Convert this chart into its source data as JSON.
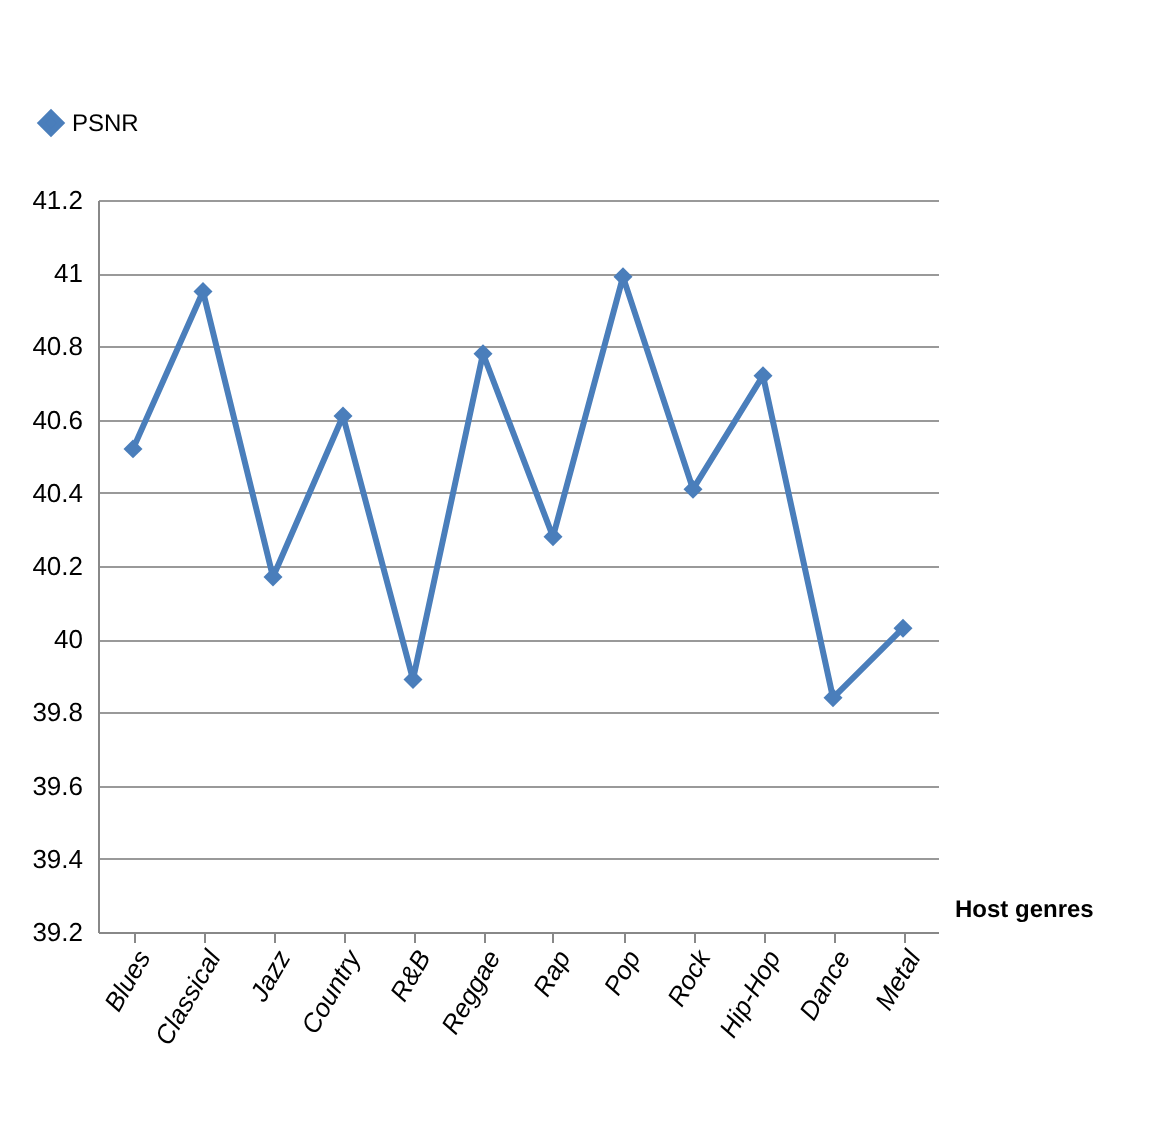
{
  "chart_data": {
    "type": "line",
    "xlabel": "Host genres",
    "categories": [
      "Blues",
      "Classical",
      "Jazz",
      "Country",
      "R&B",
      "Reggae",
      "Rap",
      "Pop",
      "Rock",
      "Hip-Hop",
      "Dance",
      "Metal"
    ],
    "series": [
      {
        "name": "PSNR",
        "color": "#4a7ebb",
        "values": [
          40.52,
          40.95,
          40.17,
          40.61,
          39.89,
          40.78,
          40.28,
          40.99,
          40.41,
          40.72,
          39.84,
          40.03
        ]
      }
    ],
    "ylim": [
      39.2,
      41.2
    ],
    "yticks": [
      39.2,
      39.4,
      39.6,
      39.8,
      40,
      40.2,
      40.4,
      40.6,
      40.8,
      41,
      41.2
    ],
    "grid": "y",
    "legend": "top left",
    "marker": "diamond"
  }
}
